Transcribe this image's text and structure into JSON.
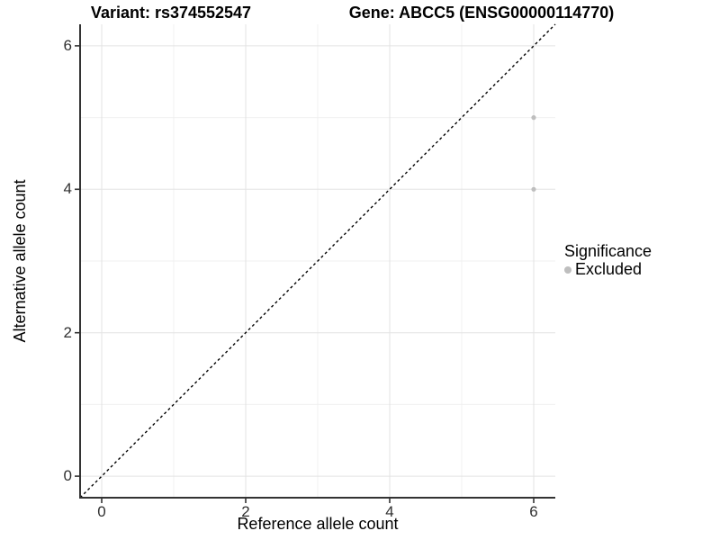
{
  "titles": {
    "variant": "Variant: rs374552547",
    "gene": "Gene: ABCC5 (ENSG00000114770)"
  },
  "chart_data": {
    "type": "scatter",
    "title_left": "Variant: rs374552547",
    "title_right": "Gene: ABCC5 (ENSG00000114770)",
    "xlabel": "Reference allele count",
    "ylabel": "Alternative allele count",
    "xlim": [
      -0.3,
      6.3
    ],
    "ylim": [
      -0.3,
      6.3
    ],
    "x_major_breaks": [
      0,
      2,
      4,
      6
    ],
    "y_major_breaks": [
      0,
      2,
      4,
      6
    ],
    "x_minor_breaks": [
      1,
      3,
      5
    ],
    "y_minor_breaks": [
      1,
      3,
      5
    ],
    "grid": true,
    "reference_line": {
      "kind": "identity",
      "from": [
        -0.3,
        -0.3
      ],
      "to": [
        6.3,
        6.3
      ],
      "style": "dashed",
      "color": "#000000"
    },
    "series": [
      {
        "name": "Excluded",
        "color": "#bebebe",
        "points": [
          {
            "x": 6,
            "y": 5
          },
          {
            "x": 6,
            "y": 4
          }
        ]
      }
    ],
    "legend": {
      "title": "Significance",
      "position": "right",
      "entries": [
        {
          "label": "Excluded",
          "color": "#bebebe",
          "marker": "dot"
        }
      ]
    },
    "style_colors": {
      "grid_major": "#e3e3e3",
      "grid_minor": "#f0f0f0",
      "axis_line": "#333333",
      "tick_label": "#303030",
      "point": "#bebebe"
    }
  }
}
